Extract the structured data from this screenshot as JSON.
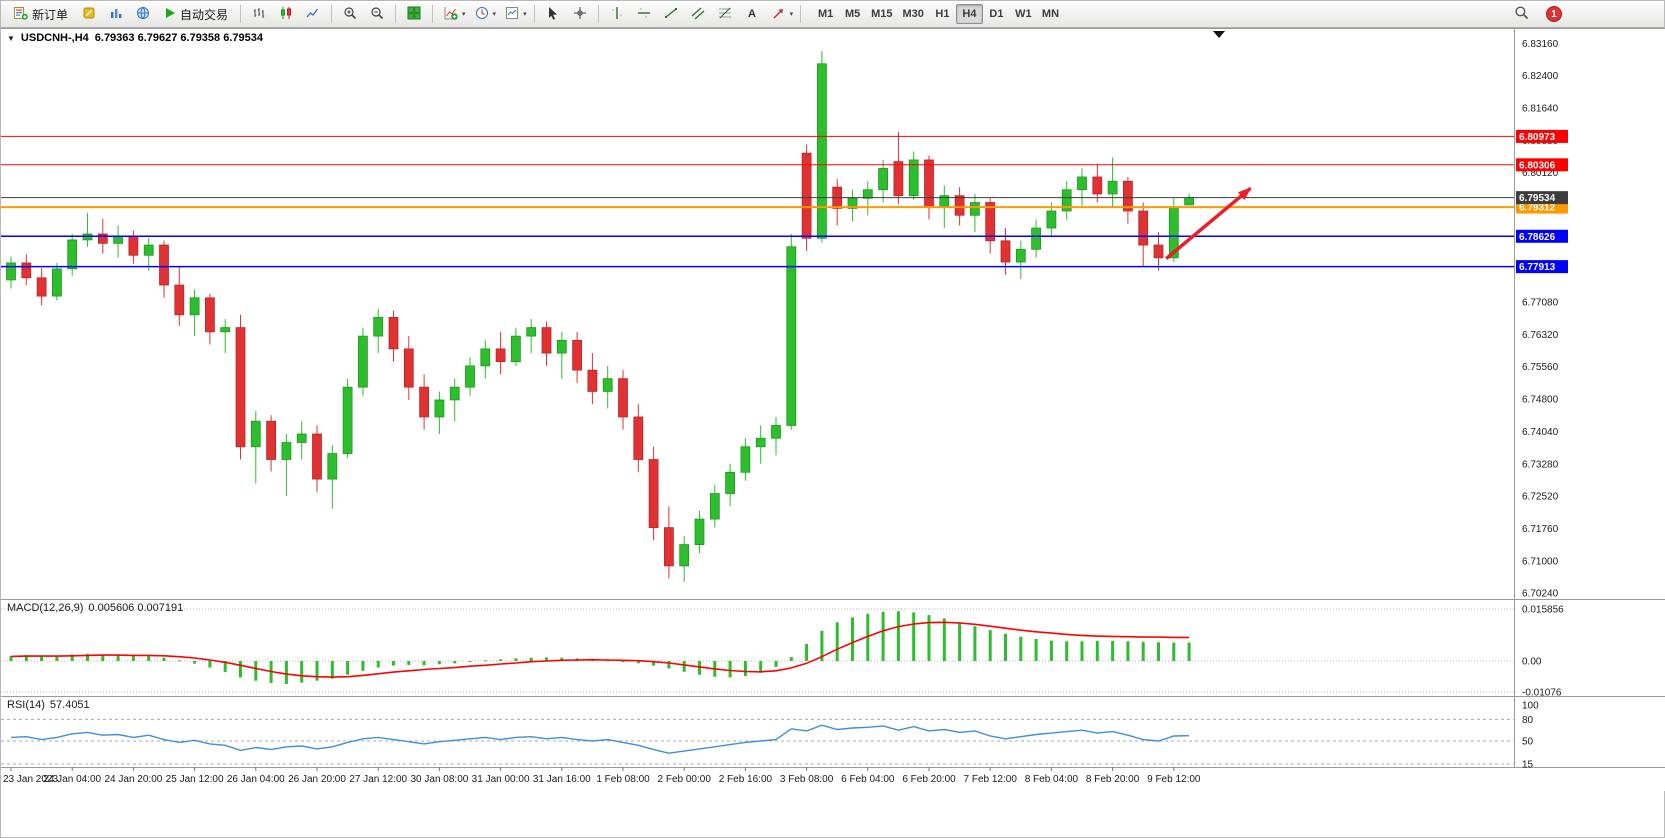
{
  "toolbar": {
    "new_order_label": "新订单",
    "autotrade_label": "自动交易",
    "timeframes": [
      "M1",
      "M5",
      "M15",
      "M30",
      "H1",
      "H4",
      "D1",
      "W1",
      "MN"
    ],
    "active_timeframe": "H4",
    "notification_count": "1",
    "icon_names": [
      "new-order",
      "metaeditor",
      "market-watch",
      "web-terminal",
      "autotrading-play",
      "bar-chart",
      "candlestick-chart",
      "line-chart",
      "zoom-in",
      "zoom-out",
      "tile-windows",
      "indicators",
      "periods",
      "templates",
      "cursor",
      "crosshair",
      "vertical-line",
      "horizontal-line",
      "trendline",
      "channel",
      "fibonacci",
      "text",
      "arrows",
      "search",
      "notification-badge"
    ]
  },
  "icons": {
    "collapse_triangle": "▼",
    "dropdown_caret": "▾"
  },
  "chart": {
    "symbol_period": "USDCNH-,H4",
    "ohlc_text": "6.79363 6.79627 6.79358 6.79534"
  },
  "chart_data": {
    "type": "candlestick",
    "symbol": "USDCNH-",
    "timeframe": "H4",
    "ohlc_header": {
      "open": 6.79363,
      "high": 6.79627,
      "low": 6.79358,
      "close": 6.79534
    },
    "colors": {
      "bull": "#2dbe2d",
      "bull_border": "#1a941a",
      "bear": "#e03232",
      "bear_border": "#b32424",
      "macd_histogram": "#2dbe2d",
      "macd_signal": "#ff0000",
      "rsi_line": "#3e8ede",
      "arrow": "#ee1c25",
      "axis_text": "#1a1a1a"
    },
    "y_axis_labels": [
      "6.83160",
      "6.82400",
      "6.81640",
      "6.80880",
      "6.80120",
      "6.79360",
      "6.78600",
      "6.77840",
      "6.77080",
      "6.76320",
      "6.75560",
      "6.74800",
      "6.74040",
      "6.73280",
      "6.72520",
      "6.71760",
      "6.71000",
      "6.70240"
    ],
    "time_labels": [
      "23 Jan 2023",
      "24 Jan 04:00",
      "24 Jan 20:00",
      "25 Jan 12:00",
      "26 Jan 04:00",
      "26 Jan 20:00",
      "27 Jan 12:00",
      "30 Jan 08:00",
      "31 Jan 00:00",
      "31 Jan 16:00",
      "1 Feb 08:00",
      "2 Feb 00:00",
      "2 Feb 16:00",
      "3 Feb 08:00",
      "6 Feb 04:00",
      "6 Feb 20:00",
      "7 Feb 12:00",
      "8 Feb 04:00",
      "8 Feb 20:00",
      "9 Feb 12:00"
    ],
    "label_every_bars": 4,
    "hlines": [
      {
        "price": 6.80973,
        "label": "6.80973",
        "color": "#ff0000",
        "width": 1
      },
      {
        "price": 6.80306,
        "label": "6.80306",
        "color": "#ff0000",
        "width": 1
      },
      {
        "price": 6.79312,
        "label": "6.79312",
        "color": "#ff9900",
        "width": 2
      },
      {
        "price": 6.79534,
        "label": "6.79534",
        "color": "#3d3d3d",
        "width": 1
      },
      {
        "price": 6.78626,
        "label": "6.78626",
        "color": "#0000ff",
        "width": 1.5
      },
      {
        "price": 6.77913,
        "label": "6.77913",
        "color": "#0000ff",
        "width": 1.5
      }
    ],
    "trend_arrow": {
      "from_bar": 75.5,
      "from_price": 6.781,
      "to_bar": 81.0,
      "to_price": 6.7975
    },
    "candles": [
      [
        6.776,
        6.7815,
        6.774,
        6.78
      ],
      [
        6.78,
        6.782,
        6.7748,
        6.7765
      ],
      [
        6.7765,
        6.7788,
        6.77,
        6.7722
      ],
      [
        6.7722,
        6.78,
        6.7712,
        6.7786
      ],
      [
        6.7786,
        6.7868,
        6.777,
        6.7854
      ],
      [
        6.7854,
        6.7918,
        6.7838,
        6.7868
      ],
      [
        6.7868,
        6.7904,
        6.7822,
        6.7846
      ],
      [
        6.7846,
        6.7888,
        6.7812,
        6.7862
      ],
      [
        6.7862,
        6.7876,
        6.7798,
        6.7818
      ],
      [
        6.7818,
        6.7858,
        6.7782,
        6.7842
      ],
      [
        6.7842,
        6.7852,
        6.7718,
        6.7748
      ],
      [
        6.7748,
        6.7792,
        6.7652,
        6.7678
      ],
      [
        6.7678,
        6.7738,
        6.7628,
        6.7718
      ],
      [
        6.7718,
        6.7728,
        6.7608,
        6.7638
      ],
      [
        6.7638,
        6.7668,
        6.7588,
        6.7648
      ],
      [
        6.7648,
        6.7678,
        6.7338,
        6.7368
      ],
      [
        6.7368,
        6.7452,
        6.7282,
        6.7428
      ],
      [
        6.7428,
        6.7442,
        6.731,
        6.7338
      ],
      [
        6.7338,
        6.7398,
        6.7252,
        6.7378
      ],
      [
        6.7378,
        6.7428,
        6.7338,
        6.7398
      ],
      [
        6.7398,
        6.7418,
        6.7262,
        6.7292
      ],
      [
        6.7292,
        6.7372,
        6.7222,
        6.7352
      ],
      [
        6.7352,
        6.7528,
        6.7342,
        6.7508
      ],
      [
        6.7508,
        6.7648,
        6.7488,
        6.7628
      ],
      [
        6.7628,
        6.7692,
        6.7588,
        6.7672
      ],
      [
        6.7672,
        6.7688,
        6.7568,
        6.7598
      ],
      [
        6.7598,
        6.7628,
        6.7478,
        6.7508
      ],
      [
        6.7508,
        6.7538,
        6.7408,
        6.7438
      ],
      [
        6.7438,
        6.7498,
        6.7398,
        6.7478
      ],
      [
        6.7478,
        6.7528,
        6.7428,
        6.7508
      ],
      [
        6.7508,
        6.7578,
        6.7488,
        6.7558
      ],
      [
        6.7558,
        6.7618,
        6.7528,
        6.7598
      ],
      [
        6.7598,
        6.7638,
        6.7538,
        6.7568
      ],
      [
        6.7568,
        6.7648,
        6.7558,
        6.7628
      ],
      [
        6.7628,
        6.7668,
        6.7588,
        6.7648
      ],
      [
        6.7648,
        6.7662,
        6.7558,
        6.7588
      ],
      [
        6.7588,
        6.7638,
        6.7528,
        6.7618
      ],
      [
        6.7618,
        6.7638,
        6.7518,
        6.7548
      ],
      [
        6.7548,
        6.7588,
        6.7468,
        6.7498
      ],
      [
        6.7498,
        6.7558,
        6.7458,
        6.7528
      ],
      [
        6.7528,
        6.7548,
        6.7408,
        6.7438
      ],
      [
        6.7438,
        6.7468,
        6.7308,
        6.7338
      ],
      [
        6.7338,
        6.7368,
        6.7148,
        6.7178
      ],
      [
        6.7178,
        6.7228,
        6.7058,
        6.7088
      ],
      [
        6.7088,
        6.7158,
        6.705,
        6.7138
      ],
      [
        6.7138,
        6.7218,
        6.7118,
        6.7198
      ],
      [
        6.7198,
        6.7278,
        6.7178,
        6.7258
      ],
      [
        6.7258,
        6.7328,
        6.7228,
        6.7308
      ],
      [
        6.7308,
        6.7388,
        6.7288,
        6.7368
      ],
      [
        6.7368,
        6.7418,
        6.7328,
        6.7388
      ],
      [
        6.7388,
        6.7438,
        6.7348,
        6.7418
      ],
      [
        6.7418,
        6.7868,
        6.7408,
        6.7838
      ],
      [
        6.8058,
        6.8078,
        6.7828,
        6.7858
      ],
      [
        6.7858,
        6.8298,
        6.7848,
        6.8268
      ],
      [
        6.7978,
        6.7998,
        6.7888,
        6.7928
      ],
      [
        6.7928,
        6.7972,
        6.7898,
        6.7952
      ],
      [
        6.7952,
        6.7992,
        6.7912,
        6.7972
      ],
      [
        6.7972,
        6.8042,
        6.7942,
        6.8022
      ],
      [
        6.8038,
        6.8108,
        6.7938,
        6.7958
      ],
      [
        6.7958,
        6.8062,
        6.7948,
        6.8042
      ],
      [
        6.8042,
        6.8052,
        6.7902,
        6.7932
      ],
      [
        6.7932,
        6.7982,
        6.7882,
        6.7958
      ],
      [
        6.7958,
        6.7978,
        6.7888,
        6.7912
      ],
      [
        6.7912,
        6.7962,
        6.7872,
        6.7942
      ],
      [
        6.7942,
        6.7952,
        6.7822,
        6.7852
      ],
      [
        6.7852,
        6.7882,
        6.7772,
        6.7802
      ],
      [
        6.7802,
        6.7852,
        6.7762,
        6.7832
      ],
      [
        6.7832,
        6.7902,
        6.7812,
        6.7882
      ],
      [
        6.7882,
        6.7942,
        6.7862,
        6.7922
      ],
      [
        6.7922,
        6.7992,
        6.7902,
        6.7972
      ],
      [
        6.7972,
        6.8022,
        6.7932,
        6.8002
      ],
      [
        6.8002,
        6.8032,
        6.7942,
        6.7962
      ],
      [
        6.7962,
        6.8048,
        6.7932,
        6.7992
      ],
      [
        6.7992,
        6.8002,
        6.7892,
        6.7922
      ],
      [
        6.7922,
        6.7942,
        6.7792,
        6.7842
      ],
      [
        6.7842,
        6.7872,
        6.7782,
        6.7812
      ],
      [
        6.7812,
        6.7952,
        6.7802,
        6.7932
      ],
      [
        6.79363,
        6.79627,
        6.79358,
        6.79534
      ]
    ],
    "macd": {
      "title": "MACD(12,26,9)",
      "value_main": "0.005606",
      "value_signal": "0.007191",
      "values_text": "0.005606 0.007191",
      "axis": [
        {
          "label": "0.015856",
          "value": 0.015856
        },
        {
          "label": "0.00",
          "value": 0
        },
        {
          "label": "-0.01076",
          "value": -0.01076
        }
      ],
      "histogram": [
        0.0015,
        0.0018,
        0.0014,
        0.0016,
        0.002,
        0.0022,
        0.0019,
        0.0017,
        0.0015,
        0.0016,
        0.001,
        0.0002,
        -0.0008,
        -0.002,
        -0.0034,
        -0.005,
        -0.006,
        -0.0067,
        -0.007,
        -0.0066,
        -0.006,
        -0.0054,
        -0.0042,
        -0.003,
        -0.002,
        -0.0014,
        -0.0012,
        -0.0013,
        -0.001,
        -0.0007,
        -0.0003,
        0.0002,
        0.0005,
        0.0008,
        0.001,
        0.0011,
        0.001,
        0.0008,
        0.0005,
        0.0002,
        -0.0002,
        -0.0007,
        -0.0014,
        -0.0023,
        -0.0033,
        -0.0042,
        -0.0048,
        -0.005,
        -0.0046,
        -0.0036,
        -0.0018,
        0.0012,
        0.0052,
        0.0092,
        0.0118,
        0.0133,
        0.0144,
        0.015,
        0.0152,
        0.0148,
        0.014,
        0.013,
        0.0118,
        0.0106,
        0.0094,
        0.0083,
        0.0074,
        0.0067,
        0.0062,
        0.006,
        0.006,
        0.0061,
        0.0061,
        0.006,
        0.0058,
        0.0057,
        0.0056,
        0.005606
      ],
      "signal": [
        0.0014,
        0.0015,
        0.0015,
        0.0015,
        0.0016,
        0.0017,
        0.0018,
        0.0018,
        0.0017,
        0.0017,
        0.0016,
        0.0013,
        0.0009,
        0.0003,
        -0.0004,
        -0.0013,
        -0.0023,
        -0.0032,
        -0.004,
        -0.0045,
        -0.0048,
        -0.0049,
        -0.0048,
        -0.0044,
        -0.0039,
        -0.0034,
        -0.003,
        -0.0026,
        -0.0023,
        -0.002,
        -0.0016,
        -0.0013,
        -0.0009,
        -0.0006,
        -0.0002,
        0.0,
        0.0002,
        0.0003,
        0.0004,
        0.0003,
        0.0002,
        0.0001,
        -0.0002,
        -0.0006,
        -0.0012,
        -0.0018,
        -0.0024,
        -0.0029,
        -0.0032,
        -0.0033,
        -0.003,
        -0.0021,
        -0.0007,
        0.0013,
        0.0036,
        0.0056,
        0.0075,
        0.0092,
        0.0105,
        0.0113,
        0.0117,
        0.0118,
        0.0116,
        0.0112,
        0.0106,
        0.01,
        0.0094,
        0.0089,
        0.0085,
        0.0081,
        0.0078,
        0.0076,
        0.0075,
        0.0074,
        0.0073,
        0.0073,
        0.0072,
        0.007191
      ]
    },
    "rsi": {
      "title": "RSI(14)",
      "value_text": "57.4051",
      "levels": [
        {
          "label": "100",
          "value": 100
        },
        {
          "label": "80",
          "value": 80
        },
        {
          "label": "50",
          "value": 50
        },
        {
          "label": "15",
          "value": 15
        }
      ],
      "values": [
        55,
        56,
        52,
        55,
        60,
        62,
        58,
        59,
        55,
        58,
        52,
        48,
        51,
        46,
        44,
        37,
        41,
        38,
        42,
        43,
        39,
        42,
        48,
        53,
        55,
        52,
        49,
        46,
        49,
        51,
        53,
        55,
        52,
        55,
        56,
        53,
        55,
        52,
        50,
        52,
        48,
        44,
        38,
        33,
        36,
        39,
        42,
        45,
        48,
        50,
        52,
        67,
        64,
        72,
        66,
        68,
        69,
        71,
        65,
        70,
        64,
        66,
        62,
        64,
        57,
        53,
        56,
        59,
        61,
        63,
        65,
        61,
        63,
        58,
        52,
        50,
        57,
        57.4051
      ]
    }
  }
}
